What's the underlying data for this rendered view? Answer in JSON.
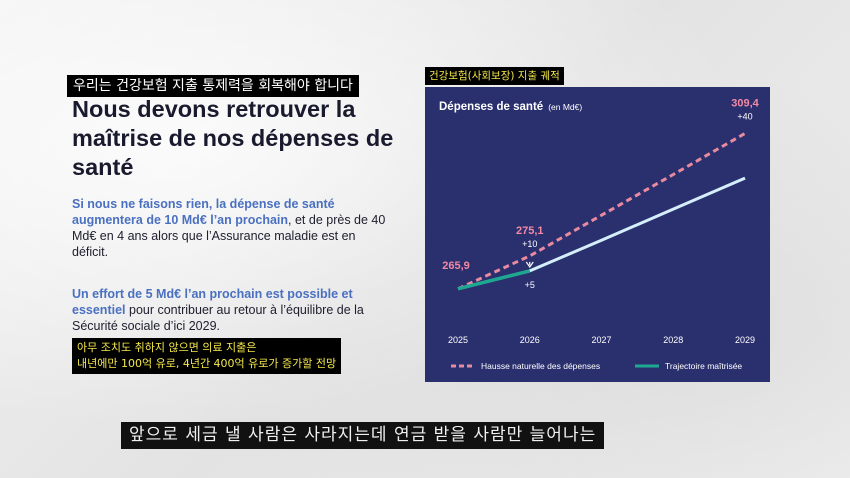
{
  "overlay": {
    "heading_ko": "우리는 건강보험 지출 통제력을 회복해야 합니다",
    "summary_ko_line1": "아무 조치도 취하지 않으면 의료 지출은",
    "summary_ko_line2": "내년에만 100억 유로, 4년간 400억 유로가 증가할 전망",
    "chart_caption_ko": "건강보험(사회보장) 지출 궤적",
    "subtitle_ko": "앞으로 세금 낼 사람은 사라지는데 연금 받을 사람만 늘어나는"
  },
  "slide": {
    "title": "Nous devons retrouver la maîtrise de nos dépenses de santé",
    "para1_bold": "Si nous ne faisons rien, la dépense de santé augmentera de 10 Md€ l’an prochain",
    "para1_rest": ", et de près de 40 Md€ en 4 ans alors que l’Assurance maladie est en déficit.",
    "para2_bold": "Un effort de 5 Md€ l’an prochain est possible et essentiel",
    "para2_rest": " pour contribuer au retour à l’équilibre de la Sécurité sociale d’ici 2029."
  },
  "chart_data": {
    "type": "line",
    "title": "Dépenses de santé",
    "unit": "(en Md€)",
    "x": [
      "2025",
      "2026",
      "2027",
      "2028",
      "2029"
    ],
    "series": [
      {
        "name": "Hausse naturelle des dépenses",
        "style": "dashed",
        "color": "#e88aa0",
        "values": [
          265.9,
          275.1,
          286.5,
          297.9,
          309.4
        ]
      },
      {
        "name": "Trajectoire maîtrisée",
        "style": "solid",
        "color_segment_1": "#1fa891",
        "color": "#d4eefa",
        "values": [
          265.9,
          270.9,
          279.5,
          288.2,
          296.9
        ]
      }
    ],
    "point_labels": [
      {
        "text": "265,9"
      },
      {
        "text": "275,1"
      },
      {
        "text": "309,4"
      }
    ],
    "delta_labels": [
      "+10",
      "+5",
      "+40"
    ],
    "colors": {
      "background": "#2a2f6e",
      "text": "#ffffff",
      "label_pink": "#f28aa5"
    }
  }
}
